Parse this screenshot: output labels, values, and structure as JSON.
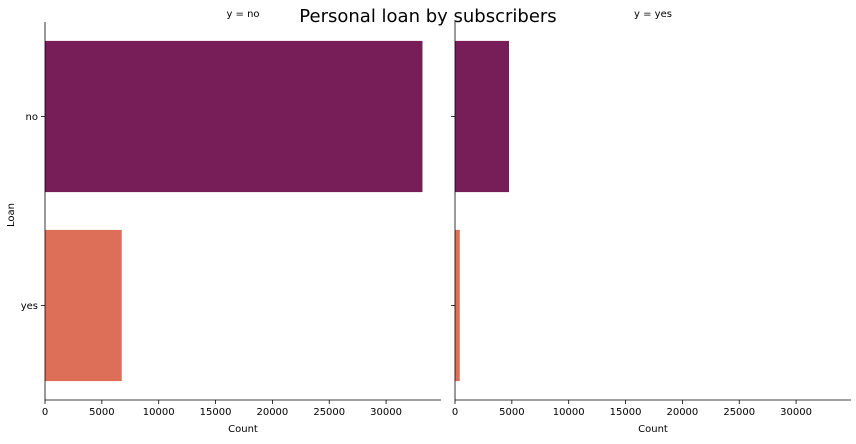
{
  "chart_data": {
    "type": "bar",
    "orientation": "horizontal",
    "title": "Personal loan by subscribers",
    "xlabel": "Count",
    "ylabel": "Loan",
    "categories": [
      "no",
      "yes"
    ],
    "xlim": [
      0,
      34830
    ],
    "x_ticks": [
      0,
      5000,
      10000,
      15000,
      20000,
      25000,
      30000
    ],
    "grid": false,
    "legend": "none",
    "colors": {
      "no": "#771e59",
      "yes": "#dd6e58"
    },
    "facets": [
      {
        "label": "y = no",
        "values": [
          33200,
          6750
        ]
      },
      {
        "label": "y = yes",
        "values": [
          4750,
          420
        ]
      }
    ]
  }
}
